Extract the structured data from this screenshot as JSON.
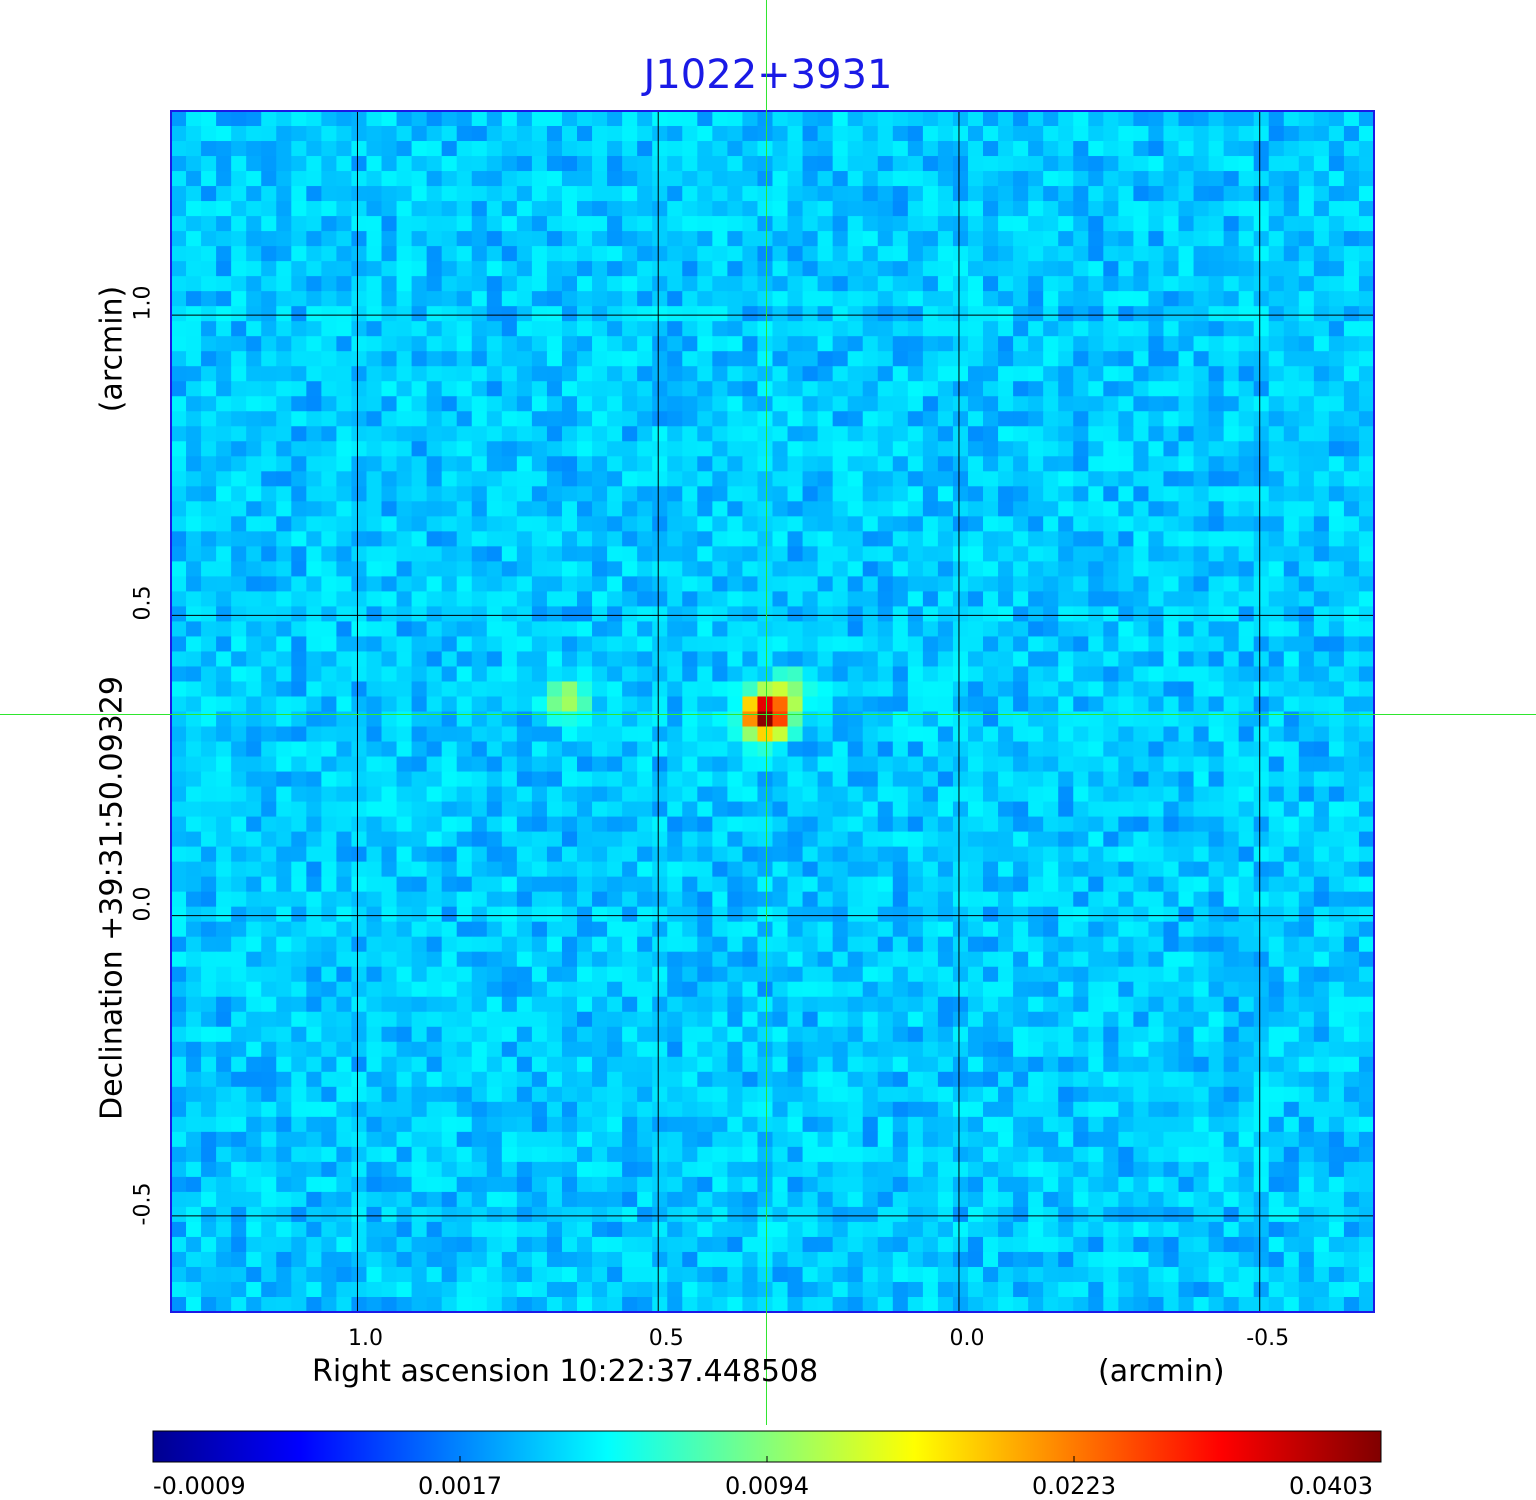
{
  "chart_data": {
    "type": "heatmap",
    "title": "J1022+3931",
    "xlabel": "Right ascension  10:22:37.448508",
    "xunit": "(arcmin)",
    "ylabel": "Declination  +39:31:50.09329",
    "yunit": "(arcmin)",
    "xlim": [
      1.31,
      -0.69
    ],
    "ylim": [
      -0.66,
      1.34
    ],
    "xticks": [
      1.0,
      0.5,
      0.0,
      -0.5
    ],
    "xtick_labels": [
      "1.0",
      "0.5",
      "0.0",
      "-0.5"
    ],
    "yticks": [
      1.0,
      0.5,
      0.0,
      -0.5
    ],
    "ytick_labels": [
      "1.0",
      "0.5",
      "0.0",
      "-0.5"
    ],
    "grid": true,
    "crosshair": {
      "x": 0.32,
      "y": 0.335
    },
    "colormap": "jet",
    "colorbar": {
      "orientation": "horizontal",
      "tick_labels": [
        "-0.0009",
        "0.0017",
        "0.0094",
        "0.0223",
        "0.0403"
      ],
      "range": [
        -0.0009,
        0.0403
      ]
    },
    "sources": [
      {
        "x": 0.32,
        "y": 0.335,
        "peak": 0.0403
      },
      {
        "x": 0.28,
        "y": 0.37,
        "peak": 0.0055
      },
      {
        "x": 0.65,
        "y": 0.36,
        "peak": 0.0065
      }
    ]
  }
}
